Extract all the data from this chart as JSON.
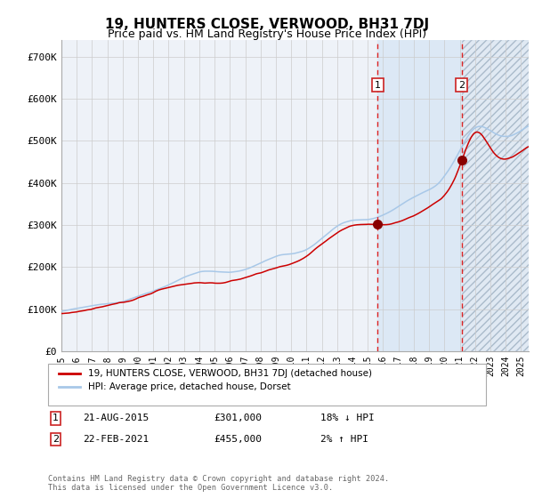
{
  "title": "19, HUNTERS CLOSE, VERWOOD, BH31 7DJ",
  "subtitle": "Price paid vs. HM Land Registry's House Price Index (HPI)",
  "title_fontsize": 11,
  "subtitle_fontsize": 9,
  "ylabel_ticks": [
    "£0",
    "£100K",
    "£200K",
    "£300K",
    "£400K",
    "£500K",
    "£600K",
    "£700K"
  ],
  "ytick_values": [
    0,
    100000,
    200000,
    300000,
    400000,
    500000,
    600000,
    700000
  ],
  "ylim": [
    0,
    740000
  ],
  "xlim_start": 1995.0,
  "xlim_end": 2025.5,
  "hpi_color": "#a8c8e8",
  "price_color": "#cc0000",
  "dashed_line_color": "#dd2222",
  "marker_color": "#880000",
  "purchase1_x": 2015.64,
  "purchase1_y": 301000,
  "purchase2_x": 2021.13,
  "purchase2_y": 455000,
  "legend_label1": "19, HUNTERS CLOSE, VERWOOD, BH31 7DJ (detached house)",
  "legend_label2": "HPI: Average price, detached house, Dorset",
  "table_row1_num": "1",
  "table_row1_date": "21-AUG-2015",
  "table_row1_price": "£301,000",
  "table_row1_hpi": "18% ↓ HPI",
  "table_row2_num": "2",
  "table_row2_date": "22-FEB-2021",
  "table_row2_price": "£455,000",
  "table_row2_hpi": "2% ↑ HPI",
  "footer": "Contains HM Land Registry data © Crown copyright and database right 2024.\nThis data is licensed under the Open Government Licence v3.0.",
  "background_color": "#ffffff",
  "plot_bg_color": "#eef2f8",
  "shade_color": "#dce8f5",
  "grid_color": "#cccccc"
}
